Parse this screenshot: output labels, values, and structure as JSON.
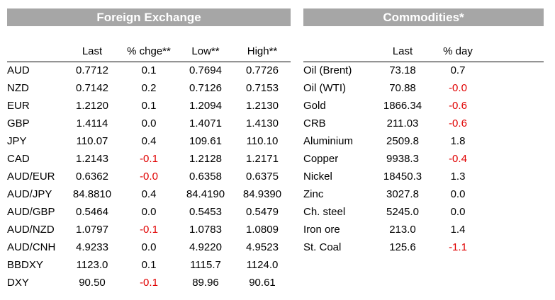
{
  "fx": {
    "title": "Foreign Exchange",
    "headers": [
      "",
      "Last",
      "% chge**",
      "Low**",
      "High**"
    ],
    "rows": [
      [
        "AUD",
        "0.7712",
        "0.1",
        "0.7694",
        "0.7726"
      ],
      [
        "NZD",
        "0.7142",
        "0.2",
        "0.7126",
        "0.7153"
      ],
      [
        "EUR",
        "1.2120",
        "0.1",
        "1.2094",
        "1.2130"
      ],
      [
        "GBP",
        "1.4114",
        "0.0",
        "1.4071",
        "1.4130"
      ],
      [
        "JPY",
        "110.07",
        "0.4",
        "109.61",
        "110.10"
      ],
      [
        "CAD",
        "1.2143",
        "-0.1",
        "1.2128",
        "1.2171"
      ],
      [
        "AUD/EUR",
        "0.6362",
        "-0.0",
        "0.6358",
        "0.6375"
      ],
      [
        "AUD/JPY",
        "84.8810",
        "0.4",
        "84.4190",
        "84.9390"
      ],
      [
        "AUD/GBP",
        "0.5464",
        "0.0",
        "0.5453",
        "0.5479"
      ],
      [
        "AUD/NZD",
        "1.0797",
        "-0.1",
        "1.0783",
        "1.0809"
      ],
      [
        "AUD/CNH",
        "4.9233",
        "0.0",
        "4.9220",
        "4.9523"
      ],
      [
        "BBDXY",
        "1123.0",
        "0.1",
        "1115.7",
        "1124.0"
      ],
      [
        "DXY",
        "90.50",
        "-0.1",
        "89.96",
        "90.61"
      ]
    ]
  },
  "commodities": {
    "title": "Commodities*",
    "headers": [
      "",
      "Last",
      "% day"
    ],
    "rows": [
      [
        "Oil (Brent)",
        "73.18",
        "0.7"
      ],
      [
        "Oil (WTI)",
        "70.88",
        "-0.0"
      ],
      [
        "Gold",
        "1866.34",
        "-0.6"
      ],
      [
        "CRB",
        "211.03",
        "-0.6"
      ],
      [
        "Aluminium",
        "2509.8",
        "1.8"
      ],
      [
        "Copper",
        "9938.3",
        "-0.4"
      ],
      [
        "Nickel",
        "18450.3",
        "1.3"
      ],
      [
        "Zinc",
        "3027.8",
        "0.0"
      ],
      [
        "Ch. steel",
        "5245.0",
        "0.0"
      ],
      [
        "Iron ore",
        "213.0",
        "1.4"
      ],
      [
        "St. Coal",
        "125.6",
        "-1.1"
      ]
    ]
  },
  "colors": {
    "banner_bg": "#a6a6a6",
    "banner_text": "#ffffff",
    "negative": "#e00000"
  }
}
